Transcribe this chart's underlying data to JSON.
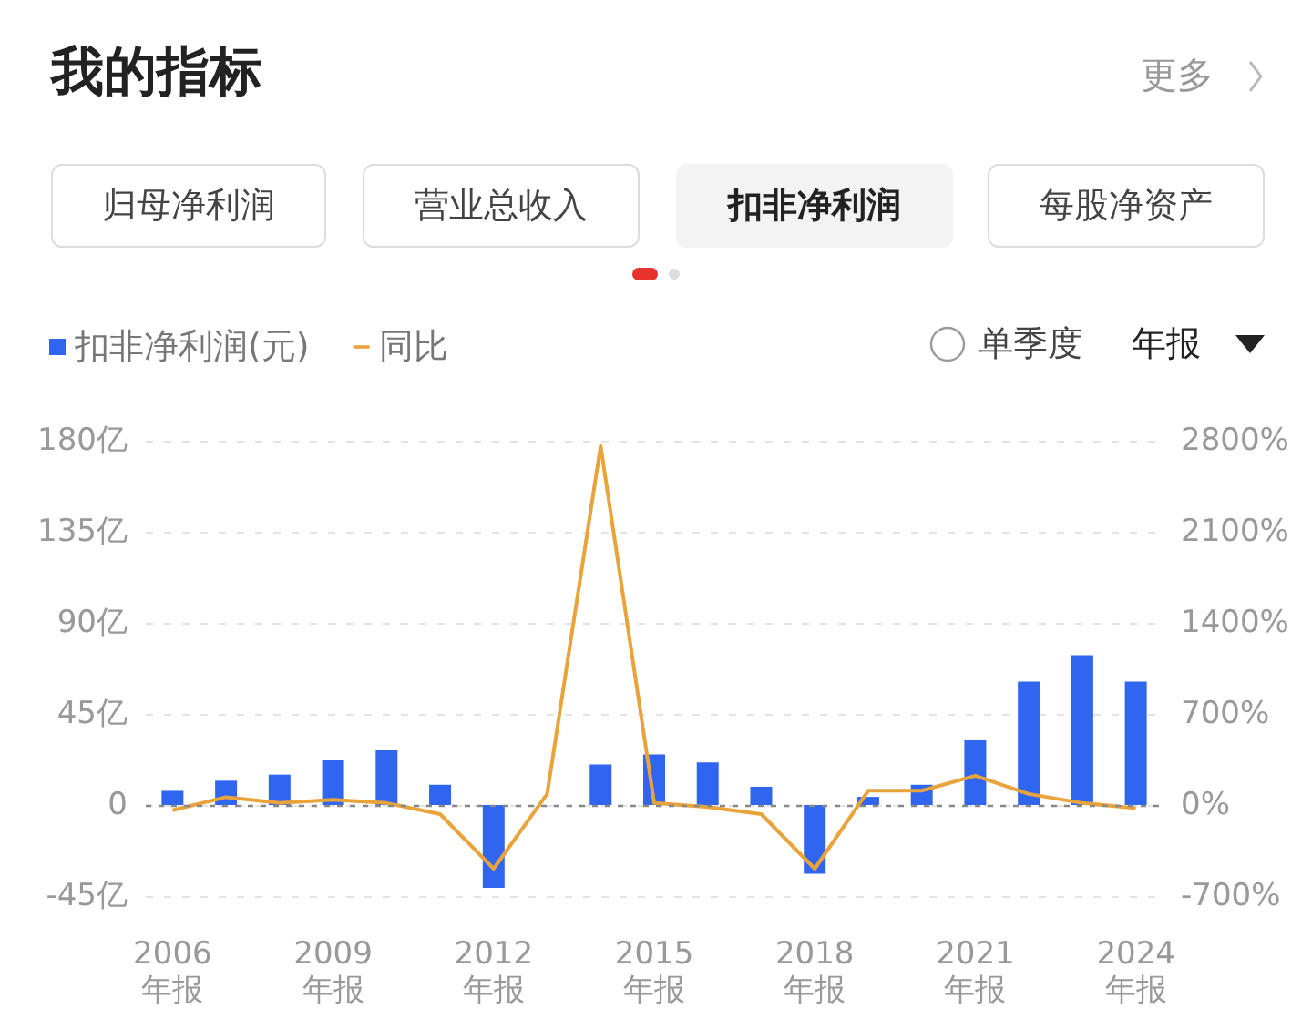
{
  "chart_data": {
    "type": "bar",
    "title": "我的指标",
    "annotations": [
      "更多",
      "归母净利润",
      "营业总收入",
      "扣非净利润",
      "每股净资产",
      "单季度",
      "年报"
    ],
    "categories": [
      "2006\n年报",
      null,
      null,
      "2009\n年报",
      null,
      null,
      "2012\n年报",
      null,
      null,
      "2015\n年报",
      null,
      null,
      "2018\n年报",
      null,
      null,
      "2021\n年报",
      null,
      null,
      "2024\n年报"
    ],
    "series": [
      {
        "name": "扣非净利润(元)",
        "color": "#3065f0",
        "values": [
          7,
          12,
          15,
          22,
          27,
          10,
          -41,
          null,
          20,
          25,
          21,
          9,
          -34,
          4,
          10,
          32,
          61,
          74,
          61
        ]
      },
      {
        "name": "同比",
        "type": "line",
        "axis": "y2",
        "color": "#e8a33a",
        "values": [
          -40,
          60,
          15,
          40,
          15,
          -70,
          -490,
          85,
          2760,
          15,
          -15,
          -70,
          -490,
          110,
          110,
          225,
          85,
          15,
          -25
        ]
      }
    ],
    "ylim": [
      -45,
      180
    ],
    "yticks": [
      {
        "value": -45,
        "label": "-45亿"
      },
      {
        "value": 0,
        "label": "0"
      },
      {
        "value": 45,
        "label": "45亿"
      },
      {
        "value": 90,
        "label": "90亿"
      },
      {
        "value": 135,
        "label": "135亿"
      },
      {
        "value": 180,
        "label": "180亿"
      }
    ],
    "y2lim": [
      -700,
      2800
    ],
    "y2ticks": [
      {
        "value": -700,
        "label": "-700%"
      },
      {
        "value": 0,
        "label": "0%"
      },
      {
        "value": 700,
        "label": "700%"
      },
      {
        "value": 1400,
        "label": "1400%"
      },
      {
        "value": 2100,
        "label": "2100%"
      },
      {
        "value": 2800,
        "label": "2800%"
      }
    ],
    "ref_lines": [
      {
        "axis": "y",
        "value": 0,
        "color": "#888888",
        "line_style": "dotted"
      }
    ],
    "grid": "y",
    "legend": "top left",
    "marker": "none",
    "line_style": "solid"
  }
}
